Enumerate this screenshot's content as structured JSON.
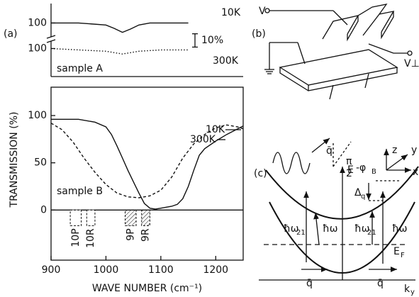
{
  "panel_labels": [
    "(a)",
    "(b)",
    "(c)"
  ],
  "chart_data": [
    {
      "type": "line",
      "xlim": [
        900,
        1250
      ],
      "ylim": [
        88,
        113
      ],
      "yticks": [
        100
      ],
      "scale_bar": {
        "value": 10,
        "label": "10%"
      },
      "series": [
        {
          "name": "10K",
          "color": "#111",
          "style": "solid",
          "x": [
            900,
            950,
            1000,
            1015,
            1030,
            1045,
            1060,
            1080,
            1100,
            1150
          ],
          "values": [
            100,
            100,
            98.5,
            96,
            93,
            95.5,
            98.5,
            100,
            100,
            100
          ]
        }
      ]
    },
    {
      "type": "line",
      "xlim": [
        900,
        1250
      ],
      "ylim": [
        81,
        107
      ],
      "yticks": [
        100
      ],
      "sample_label": "sample A",
      "series": [
        {
          "name": "300K",
          "color": "#111",
          "style": "dotted",
          "x": [
            900,
            950,
            1000,
            1030,
            1060,
            1100,
            1150
          ],
          "values": [
            100,
            99,
            98,
            96,
            98,
            99,
            99
          ]
        }
      ]
    },
    {
      "type": "line",
      "xlim": [
        900,
        1250
      ],
      "ylim": [
        -53,
        130
      ],
      "xticks": [
        900,
        1000,
        1100,
        1200
      ],
      "yticks": [
        0,
        50,
        100
      ],
      "xlabel": "WAVE NUMBER (cm⁻¹)",
      "ylabel": "TRANSMISSION (%)",
      "sample_label": "sample B",
      "series": [
        {
          "name": "10K",
          "color": "#111",
          "style": "solid",
          "x": [
            900,
            950,
            980,
            1000,
            1010,
            1020,
            1030,
            1040,
            1050,
            1060,
            1070,
            1080,
            1090,
            1100,
            1120,
            1130,
            1140,
            1150,
            1160,
            1170,
            1180,
            1200,
            1220,
            1250
          ],
          "values": [
            96,
            96,
            93,
            88,
            80,
            68,
            55,
            42,
            30,
            18,
            7,
            2,
            1,
            2,
            4,
            6,
            12,
            25,
            42,
            58,
            65,
            73,
            80,
            89
          ]
        },
        {
          "name": "300K",
          "color": "#111",
          "style": "dashed",
          "x": [
            900,
            920,
            940,
            960,
            980,
            1000,
            1020,
            1040,
            1060,
            1080,
            1100,
            1120,
            1140,
            1160,
            1180,
            1200,
            1220,
            1240,
            1250
          ],
          "values": [
            92,
            85,
            72,
            55,
            40,
            27,
            18,
            14,
            13,
            15,
            21,
            35,
            55,
            70,
            80,
            87,
            90,
            88,
            86
          ]
        }
      ],
      "laser_lines": [
        {
          "label": "10P",
          "range": [
            935,
            955
          ],
          "hatched": false
        },
        {
          "label": "10R",
          "range": [
            965,
            980
          ],
          "hatched": false
        },
        {
          "label": "9P",
          "range": [
            1035,
            1055
          ],
          "hatched": true
        },
        {
          "label": "9R",
          "range": [
            1065,
            1080
          ],
          "hatched": true
        }
      ]
    }
  ],
  "panel_b": {
    "voltage": "V",
    "hall_voltage": "V⊥",
    "wavevector": "q̄",
    "angle": [
      "π",
      "2",
      "-φ",
      "B"
    ],
    "axes": [
      "z",
      "y",
      "x"
    ]
  },
  "panel_c": {
    "energy_axis": "E",
    "momentum_axis": [
      "k",
      "y"
    ],
    "fermi": [
      "E",
      "F"
    ],
    "gap": [
      "Δ",
      "q"
    ],
    "transitions": [
      "ħω",
      "21",
      "ħω",
      "ħω",
      "21",
      "ħω"
    ],
    "wavevectors": [
      "q̄",
      "q̄"
    ]
  }
}
